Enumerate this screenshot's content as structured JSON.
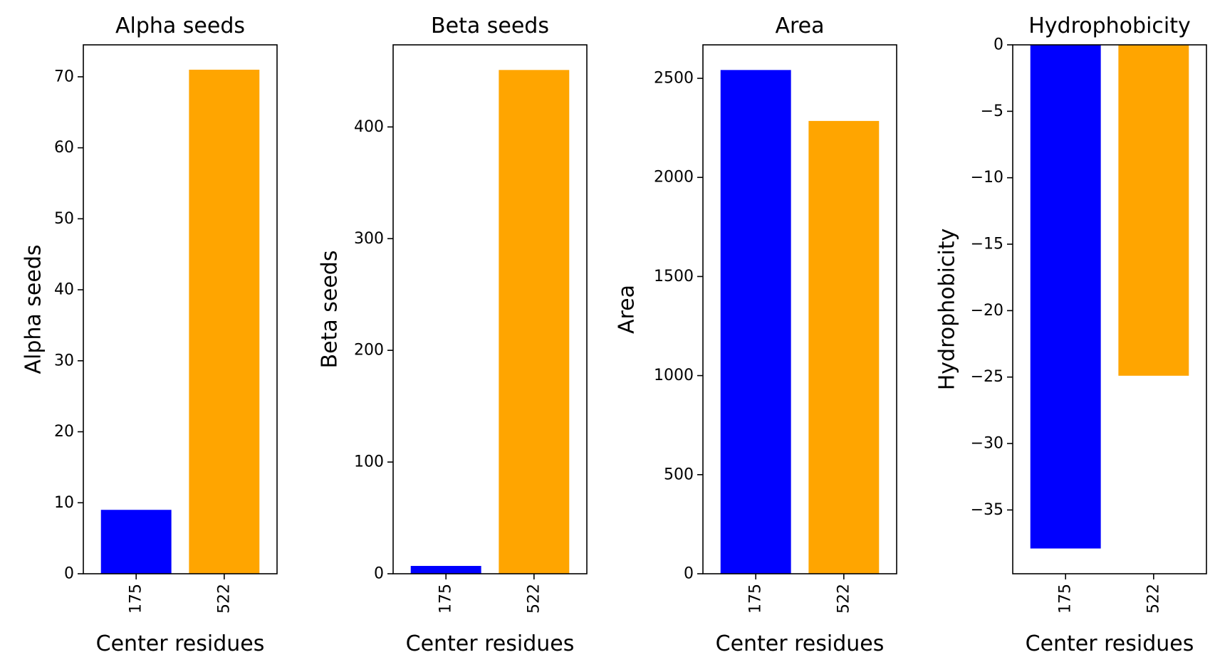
{
  "chart_data": [
    {
      "type": "bar",
      "title": "Alpha seeds",
      "xlabel": "Center residues",
      "ylabel": "Alpha seeds",
      "categories": [
        "175",
        "522"
      ],
      "values": [
        9,
        71
      ],
      "colors": [
        "#0000ff",
        "#ffa500"
      ],
      "ylim": [
        0,
        74.5
      ],
      "yticks": [
        0,
        10,
        20,
        30,
        40,
        50,
        60,
        70
      ],
      "ytick_labels": [
        "0",
        "10",
        "20",
        "30",
        "40",
        "50",
        "60",
        "70"
      ],
      "grid": false,
      "xtick_rotation": 90
    },
    {
      "type": "bar",
      "title": "Beta seeds",
      "xlabel": "Center residues",
      "ylabel": "Beta seeds",
      "categories": [
        "175",
        "522"
      ],
      "values": [
        7,
        451
      ],
      "colors": [
        "#0000ff",
        "#ffa500"
      ],
      "ylim": [
        0,
        473.5
      ],
      "yticks": [
        0,
        100,
        200,
        300,
        400
      ],
      "ytick_labels": [
        "0",
        "100",
        "200",
        "300",
        "400"
      ],
      "grid": false,
      "xtick_rotation": 90
    },
    {
      "type": "bar",
      "title": "Area",
      "xlabel": "Center residues",
      "ylabel": "Area",
      "categories": [
        "175",
        "522"
      ],
      "values": [
        2542,
        2285
      ],
      "colors": [
        "#0000ff",
        "#ffa500"
      ],
      "ylim": [
        0,
        2669
      ],
      "yticks": [
        0,
        500,
        1000,
        1500,
        2000,
        2500
      ],
      "ytick_labels": [
        "0",
        "500",
        "1000",
        "1500",
        "2000",
        "2500"
      ],
      "grid": false,
      "xtick_rotation": 90
    },
    {
      "type": "bar",
      "title": "Hydrophobicity",
      "xlabel": "Center residues",
      "ylabel": "Hydrophobicity",
      "categories": [
        "175",
        "522"
      ],
      "values": [
        -37.9,
        -24.9
      ],
      "colors": [
        "#0000ff",
        "#ffa500"
      ],
      "ylim": [
        -39.8,
        0
      ],
      "yticks": [
        0,
        -5,
        -10,
        -15,
        -20,
        -25,
        -30,
        -35
      ],
      "ytick_labels": [
        "0",
        "−5",
        "−10",
        "−15",
        "−20",
        "−25",
        "−30",
        "−35"
      ],
      "grid": false,
      "xtick_rotation": 90
    }
  ]
}
